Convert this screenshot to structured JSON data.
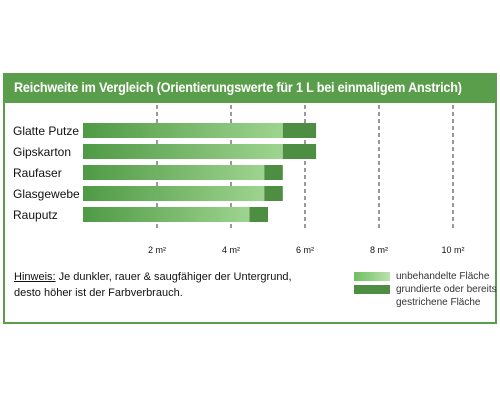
{
  "chart_data": {
    "type": "bar",
    "orientation": "horizontal",
    "stacked": true,
    "title": "Reichweite im Vergleich (Orientierungswerte für 1 L bei einmaligem Anstrich)",
    "categories": [
      "Glatte Putze",
      "Gipskarton",
      "Raufaser",
      "Glasgewebe",
      "Rauputz"
    ],
    "series": [
      {
        "name": "unbehandelte Fläche",
        "values": [
          5.4,
          5.4,
          4.9,
          4.9,
          4.5
        ],
        "color": "#7fc872"
      },
      {
        "name": "grundierte oder bereits gestrichene Fläche",
        "values": [
          0.9,
          0.9,
          0.5,
          0.5,
          0.5
        ],
        "color": "#4e8e42"
      }
    ],
    "ticks": [
      2,
      4,
      6,
      8,
      10
    ],
    "tick_suffix": " m²",
    "xlim": [
      0,
      10.5
    ],
    "gridlines": [
      2,
      4,
      6,
      8,
      10
    ],
    "grid": "vertical dashed",
    "legend_position": "bottom-right"
  },
  "note": {
    "label": "Hinweis:",
    "line1": " Je dunkler, rauer & saugfähiger der Untergrund,",
    "line2": "desto höher ist der Farbverbrauch."
  },
  "legend": {
    "item1": "unbehandelte Fläche",
    "item2_line1": "grundierte oder bereits",
    "item2_line2": "gestrichene Fläche"
  }
}
